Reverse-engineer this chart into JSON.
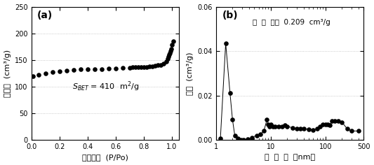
{
  "panel_a": {
    "label": "(a)",
    "xlabel": "相对压强  (P/Po)",
    "ylabel": "吸附量  (cm³/g)",
    "annotation_math": "S$_{BET}$ = 410  m²/g",
    "xlim": [
      0.0,
      1.05
    ],
    "ylim": [
      0,
      250
    ],
    "yticks": [
      0,
      50,
      100,
      150,
      200,
      250
    ],
    "xticks": [
      0.0,
      0.2,
      0.4,
      0.6,
      0.8,
      1.0
    ],
    "x": [
      0.01,
      0.05,
      0.1,
      0.15,
      0.2,
      0.25,
      0.3,
      0.35,
      0.4,
      0.45,
      0.5,
      0.55,
      0.6,
      0.65,
      0.7,
      0.72,
      0.74,
      0.76,
      0.78,
      0.8,
      0.82,
      0.84,
      0.86,
      0.88,
      0.9,
      0.92,
      0.94,
      0.96,
      0.97,
      0.975,
      0.98,
      0.985,
      0.99,
      0.995,
      1.0,
      1.01
    ],
    "y": [
      119,
      122,
      125,
      127,
      129,
      130,
      131,
      132,
      132,
      133,
      133,
      134,
      134,
      135,
      135,
      136,
      136,
      136,
      137,
      137,
      137,
      138,
      138,
      139,
      140,
      141,
      143,
      147,
      152,
      156,
      160,
      163,
      167,
      171,
      178,
      185
    ]
  },
  "panel_b": {
    "label": "(b)",
    "xlabel": "孔  直  径  （nm）",
    "ylabel": "孔容  (cm³/g)",
    "annotation": "总  孔  容：  0.209  cm³/g",
    "xlim": [
      1,
      500
    ],
    "ylim": [
      0,
      0.06
    ],
    "yticks": [
      0.0,
      0.02,
      0.04,
      0.06
    ],
    "ytick_labels": [
      "0.00",
      "0.02",
      "0.04",
      "0.06"
    ],
    "x": [
      1.2,
      1.5,
      1.8,
      2.0,
      2.2,
      2.5,
      2.8,
      3.2,
      3.8,
      4.5,
      5.5,
      6.5,
      7.5,
      8.5,
      9.0,
      9.5,
      10.0,
      11.0,
      12.0,
      14.0,
      16.0,
      18.0,
      20.0,
      25.0,
      30.0,
      35.0,
      40.0,
      50.0,
      60.0,
      70.0,
      80.0,
      90.0,
      100.0,
      110.0,
      120.0,
      130.0,
      150.0,
      170.0,
      200.0,
      250.0,
      300.0,
      400.0
    ],
    "y": [
      0.0005,
      0.0435,
      0.021,
      0.009,
      0.002,
      0.0005,
      0.0001,
      0.0001,
      0.0002,
      0.001,
      0.002,
      0.0025,
      0.004,
      0.009,
      0.007,
      0.006,
      0.007,
      0.006,
      0.006,
      0.006,
      0.006,
      0.0065,
      0.006,
      0.0055,
      0.005,
      0.005,
      0.005,
      0.0048,
      0.0045,
      0.005,
      0.006,
      0.007,
      0.007,
      0.0068,
      0.0065,
      0.0085,
      0.0085,
      0.0085,
      0.008,
      0.005,
      0.004,
      0.004
    ]
  },
  "dot_color": "black",
  "dot_size": 14,
  "font_color": "black",
  "bg_color": "white",
  "grid_color": "#bbbbbb"
}
